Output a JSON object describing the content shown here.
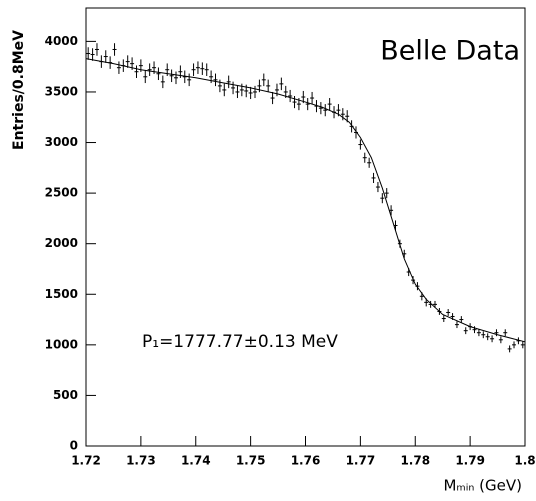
{
  "chart_data": {
    "type": "scatter",
    "y_label": "Entries/0.8MeV",
    "x_label": "Mₘᵢₙ (GeV)",
    "annotations": [
      "Belle Data",
      "P₁=1777.77±0.13 MeV"
    ],
    "xlim": [
      1.72,
      1.8
    ],
    "ylim": [
      0,
      4330
    ],
    "xticks": [
      1.72,
      1.73,
      1.74,
      1.75,
      1.76,
      1.77,
      1.78,
      1.79,
      1.8
    ],
    "yticks": [
      0,
      500,
      1000,
      1500,
      2000,
      2500,
      3000,
      3500,
      4000
    ],
    "color": "#000000",
    "x": [
      1.7204,
      1.7212,
      1.722,
      1.7228,
      1.7236,
      1.7244,
      1.7252,
      1.726,
      1.7268,
      1.7276,
      1.7284,
      1.7292,
      1.73,
      1.7308,
      1.7316,
      1.7324,
      1.7332,
      1.734,
      1.7348,
      1.7356,
      1.7364,
      1.7372,
      1.738,
      1.7388,
      1.7396,
      1.7404,
      1.7412,
      1.742,
      1.7428,
      1.7436,
      1.7444,
      1.7452,
      1.746,
      1.7468,
      1.7476,
      1.7484,
      1.7492,
      1.75,
      1.7508,
      1.7516,
      1.7524,
      1.7532,
      1.754,
      1.7548,
      1.7556,
      1.7564,
      1.7572,
      1.758,
      1.7588,
      1.7596,
      1.7604,
      1.7612,
      1.762,
      1.7628,
      1.7636,
      1.7644,
      1.7652,
      1.766,
      1.7668,
      1.7676,
      1.7684,
      1.7692,
      1.77,
      1.7708,
      1.7716,
      1.7724,
      1.7732,
      1.774,
      1.7748,
      1.7756,
      1.7764,
      1.7772,
      1.778,
      1.7788,
      1.7796,
      1.7804,
      1.7812,
      1.782,
      1.7828,
      1.7836,
      1.7844,
      1.7852,
      1.786,
      1.7868,
      1.7876,
      1.7884,
      1.7892,
      1.79,
      1.7908,
      1.7916,
      1.7924,
      1.7932,
      1.794,
      1.7948,
      1.7956,
      1.7964,
      1.7972,
      1.798,
      1.7988,
      1.7996
    ],
    "values": [
      3880,
      3870,
      3920,
      3800,
      3850,
      3790,
      3920,
      3740,
      3760,
      3800,
      3780,
      3700,
      3760,
      3650,
      3720,
      3740,
      3680,
      3600,
      3720,
      3660,
      3640,
      3700,
      3650,
      3620,
      3720,
      3740,
      3730,
      3720,
      3650,
      3620,
      3560,
      3520,
      3600,
      3540,
      3500,
      3520,
      3510,
      3490,
      3500,
      3560,
      3620,
      3560,
      3440,
      3520,
      3580,
      3500,
      3460,
      3400,
      3380,
      3450,
      3380,
      3440,
      3360,
      3340,
      3320,
      3380,
      3300,
      3320,
      3280,
      3260,
      3160,
      3100,
      2980,
      2850,
      2800,
      2650,
      2560,
      2450,
      2500,
      2330,
      2180,
      2000,
      1900,
      1720,
      1640,
      1580,
      1480,
      1420,
      1400,
      1400,
      1330,
      1260,
      1320,
      1280,
      1200,
      1250,
      1140,
      1180,
      1150,
      1120,
      1100,
      1080,
      1060,
      1120,
      1050,
      1120,
      960,
      1000,
      1040,
      1000
    ],
    "errors": [
      62,
      62,
      62,
      62,
      62,
      62,
      62,
      62,
      62,
      62,
      62,
      62,
      62,
      62,
      62,
      62,
      62,
      62,
      62,
      62,
      62,
      62,
      62,
      62,
      62,
      62,
      62,
      62,
      62,
      62,
      62,
      62,
      62,
      62,
      60,
      62,
      62,
      60,
      60,
      62,
      62,
      62,
      60,
      62,
      62,
      60,
      60,
      60,
      60,
      60,
      60,
      60,
      60,
      60,
      60,
      60,
      60,
      60,
      60,
      60,
      60,
      60,
      50,
      50,
      50,
      50,
      50,
      50,
      50,
      50,
      50,
      40,
      40,
      40,
      40,
      40,
      40,
      40,
      34,
      34,
      34,
      34,
      34,
      34,
      34,
      34,
      34,
      34,
      34,
      34,
      34,
      34,
      34,
      34,
      34,
      34,
      34,
      34,
      34,
      34
    ],
    "fit": {
      "x": [
        1.72,
        1.725,
        1.73,
        1.735,
        1.74,
        1.745,
        1.75,
        1.755,
        1.76,
        1.763,
        1.766,
        1.768,
        1.77,
        1.772,
        1.774,
        1.776,
        1.778,
        1.78,
        1.782,
        1.785,
        1.79,
        1.795,
        1.8
      ],
      "values": [
        3830,
        3780,
        3720,
        3680,
        3640,
        3590,
        3540,
        3480,
        3400,
        3350,
        3280,
        3200,
        3050,
        2850,
        2550,
        2200,
        1850,
        1600,
        1450,
        1300,
        1180,
        1100,
        1030
      ]
    }
  }
}
